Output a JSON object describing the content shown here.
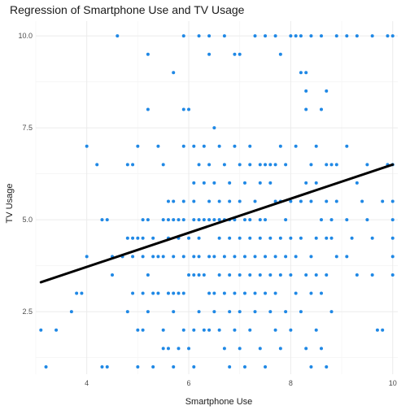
{
  "chart_data": {
    "type": "scatter",
    "title": "Regression of Smartphone Use and TV Usage",
    "xlabel": "Smartphone Use",
    "ylabel": "TV Usage",
    "xlim": [
      3.0,
      10.1
    ],
    "ylim": [
      0.8,
      10.4
    ],
    "x_ticks": [
      4,
      6,
      8,
      10
    ],
    "y_ticks": [
      2.5,
      5.0,
      7.5,
      10.0
    ],
    "x_tick_labels": [
      "4",
      "6",
      "8",
      "10"
    ],
    "y_tick_labels": [
      "2.5",
      "5.0",
      "7.5",
      "10.0"
    ],
    "grid": true,
    "point_color": "#1f88e5",
    "line_color": "#000000",
    "regression_line": {
      "x": [
        3.1,
        10.0
      ],
      "y": [
        3.3,
        6.5
      ]
    },
    "points": [
      [
        3.1,
        2.0
      ],
      [
        3.2,
        1.0
      ],
      [
        3.4,
        2.0
      ],
      [
        3.7,
        2.5
      ],
      [
        3.8,
        3.0
      ],
      [
        3.9,
        3.0
      ],
      [
        4.0,
        7.0
      ],
      [
        4.0,
        4.0
      ],
      [
        4.2,
        6.5
      ],
      [
        4.3,
        5.0
      ],
      [
        4.3,
        1.0
      ],
      [
        4.4,
        5.0
      ],
      [
        4.4,
        1.0
      ],
      [
        4.5,
        3.5
      ],
      [
        4.5,
        4.0
      ],
      [
        4.6,
        10.0
      ],
      [
        4.7,
        4.0
      ],
      [
        4.8,
        4.5
      ],
      [
        4.8,
        2.5
      ],
      [
        4.8,
        6.5
      ],
      [
        4.9,
        6.5
      ],
      [
        4.9,
        4.5
      ],
      [
        4.9,
        4.0
      ],
      [
        4.9,
        3.0
      ],
      [
        5.0,
        7.0
      ],
      [
        5.0,
        4.5
      ],
      [
        5.0,
        2.0
      ],
      [
        5.0,
        1.0
      ],
      [
        5.1,
        5.0
      ],
      [
        5.1,
        4.5
      ],
      [
        5.1,
        4.0
      ],
      [
        5.1,
        3.0
      ],
      [
        5.1,
        2.0
      ],
      [
        5.2,
        9.5
      ],
      [
        5.2,
        8.0
      ],
      [
        5.2,
        5.0
      ],
      [
        5.2,
        3.5
      ],
      [
        5.2,
        2.5
      ],
      [
        5.3,
        4.5
      ],
      [
        5.3,
        4.0
      ],
      [
        5.3,
        3.0
      ],
      [
        5.3,
        1.0
      ],
      [
        5.4,
        7.0
      ],
      [
        5.4,
        4.0
      ],
      [
        5.4,
        3.0
      ],
      [
        5.5,
        6.5
      ],
      [
        5.5,
        5.0
      ],
      [
        5.5,
        4.0
      ],
      [
        5.5,
        2.0
      ],
      [
        5.5,
        1.5
      ],
      [
        5.6,
        5.5
      ],
      [
        5.6,
        5.0
      ],
      [
        5.6,
        4.5
      ],
      [
        5.6,
        3.0
      ],
      [
        5.6,
        1.5
      ],
      [
        5.7,
        9.0
      ],
      [
        5.7,
        5.5
      ],
      [
        5.7,
        5.0
      ],
      [
        5.7,
        4.0
      ],
      [
        5.7,
        3.0
      ],
      [
        5.7,
        2.5
      ],
      [
        5.7,
        1.0
      ],
      [
        5.8,
        5.0
      ],
      [
        5.8,
        4.5
      ],
      [
        5.8,
        3.0
      ],
      [
        5.8,
        1.5
      ],
      [
        5.9,
        10.0
      ],
      [
        5.9,
        8.0
      ],
      [
        5.9,
        7.0
      ],
      [
        5.9,
        5.5
      ],
      [
        5.9,
        5.0
      ],
      [
        5.9,
        4.0
      ],
      [
        5.9,
        3.0
      ],
      [
        5.9,
        2.0
      ],
      [
        6.0,
        8.0
      ],
      [
        6.0,
        4.5
      ],
      [
        6.0,
        3.5
      ],
      [
        6.0,
        1.5
      ],
      [
        6.1,
        7.0
      ],
      [
        6.1,
        6.0
      ],
      [
        6.1,
        5.5
      ],
      [
        6.1,
        5.0
      ],
      [
        6.1,
        4.0
      ],
      [
        6.1,
        3.5
      ],
      [
        6.1,
        2.0
      ],
      [
        6.1,
        1.0
      ],
      [
        6.2,
        10.0
      ],
      [
        6.2,
        6.5
      ],
      [
        6.2,
        5.0
      ],
      [
        6.2,
        4.5
      ],
      [
        6.2,
        4.0
      ],
      [
        6.2,
        3.5
      ],
      [
        6.2,
        2.5
      ],
      [
        6.3,
        7.0
      ],
      [
        6.3,
        6.0
      ],
      [
        6.3,
        5.0
      ],
      [
        6.3,
        3.5
      ],
      [
        6.3,
        2.0
      ],
      [
        6.4,
        10.0
      ],
      [
        6.4,
        9.5
      ],
      [
        6.4,
        6.5
      ],
      [
        6.4,
        5.5
      ],
      [
        6.4,
        5.0
      ],
      [
        6.4,
        4.0
      ],
      [
        6.4,
        3.0
      ],
      [
        6.4,
        2.0
      ],
      [
        6.5,
        7.5
      ],
      [
        6.5,
        6.0
      ],
      [
        6.5,
        5.0
      ],
      [
        6.5,
        4.0
      ],
      [
        6.5,
        3.0
      ],
      [
        6.5,
        2.5
      ],
      [
        6.6,
        7.0
      ],
      [
        6.6,
        5.5
      ],
      [
        6.6,
        5.0
      ],
      [
        6.6,
        4.5
      ],
      [
        6.6,
        3.5
      ],
      [
        6.6,
        2.0
      ],
      [
        6.7,
        10.0
      ],
      [
        6.7,
        6.5
      ],
      [
        6.7,
        5.0
      ],
      [
        6.7,
        4.0
      ],
      [
        6.7,
        3.0
      ],
      [
        6.7,
        1.5
      ],
      [
        6.8,
        6.0
      ],
      [
        6.8,
        5.5
      ],
      [
        6.8,
        5.0
      ],
      [
        6.8,
        4.5
      ],
      [
        6.8,
        3.5
      ],
      [
        6.8,
        2.5
      ],
      [
        6.8,
        1.0
      ],
      [
        6.9,
        9.5
      ],
      [
        6.9,
        7.0
      ],
      [
        6.9,
        5.0
      ],
      [
        6.9,
        4.0
      ],
      [
        6.9,
        3.0
      ],
      [
        6.9,
        2.0
      ],
      [
        7.0,
        9.5
      ],
      [
        7.0,
        6.5
      ],
      [
        7.0,
        5.5
      ],
      [
        7.0,
        4.5
      ],
      [
        7.0,
        3.5
      ],
      [
        7.0,
        2.5
      ],
      [
        7.0,
        1.5
      ],
      [
        7.1,
        6.0
      ],
      [
        7.1,
        5.0
      ],
      [
        7.1,
        4.0
      ],
      [
        7.1,
        3.0
      ],
      [
        7.1,
        1.0
      ],
      [
        7.2,
        7.0
      ],
      [
        7.2,
        6.5
      ],
      [
        7.2,
        5.0
      ],
      [
        7.2,
        4.5
      ],
      [
        7.2,
        3.5
      ],
      [
        7.2,
        2.0
      ],
      [
        7.3,
        10.0
      ],
      [
        7.3,
        5.5
      ],
      [
        7.3,
        4.0
      ],
      [
        7.3,
        3.0
      ],
      [
        7.3,
        2.5
      ],
      [
        7.4,
        6.5
      ],
      [
        7.4,
        6.0
      ],
      [
        7.4,
        5.0
      ],
      [
        7.4,
        4.5
      ],
      [
        7.4,
        3.5
      ],
      [
        7.4,
        1.5
      ],
      [
        7.5,
        10.0
      ],
      [
        7.5,
        6.5
      ],
      [
        7.5,
        5.0
      ],
      [
        7.5,
        4.0
      ],
      [
        7.5,
        3.0
      ],
      [
        7.5,
        1.0
      ],
      [
        7.6,
        6.5
      ],
      [
        7.6,
        6.0
      ],
      [
        7.6,
        4.5
      ],
      [
        7.6,
        3.5
      ],
      [
        7.6,
        2.5
      ],
      [
        7.7,
        10.0
      ],
      [
        7.7,
        6.5
      ],
      [
        7.7,
        5.5
      ],
      [
        7.7,
        4.0
      ],
      [
        7.7,
        3.0
      ],
      [
        7.7,
        2.0
      ],
      [
        7.8,
        9.5
      ],
      [
        7.8,
        7.0
      ],
      [
        7.8,
        5.5
      ],
      [
        7.8,
        4.5
      ],
      [
        7.8,
        3.5
      ],
      [
        7.8,
        1.5
      ],
      [
        7.9,
        6.5
      ],
      [
        7.9,
        5.0
      ],
      [
        7.9,
        4.0
      ],
      [
        7.9,
        2.5
      ],
      [
        8.0,
        10.0
      ],
      [
        8.0,
        5.5
      ],
      [
        8.0,
        4.5
      ],
      [
        8.0,
        3.5
      ],
      [
        8.0,
        2.0
      ],
      [
        8.1,
        10.0
      ],
      [
        8.1,
        7.0
      ],
      [
        8.1,
        4.0
      ],
      [
        8.1,
        3.0
      ],
      [
        8.2,
        10.0
      ],
      [
        8.2,
        9.0
      ],
      [
        8.2,
        5.5
      ],
      [
        8.2,
        4.5
      ],
      [
        8.2,
        2.5
      ],
      [
        8.3,
        9.0
      ],
      [
        8.3,
        8.5
      ],
      [
        8.3,
        8.0
      ],
      [
        8.3,
        6.0
      ],
      [
        8.3,
        3.5
      ],
      [
        8.3,
        1.5
      ],
      [
        8.4,
        10.0
      ],
      [
        8.4,
        6.5
      ],
      [
        8.4,
        5.5
      ],
      [
        8.4,
        4.0
      ],
      [
        8.4,
        3.0
      ],
      [
        8.4,
        1.0
      ],
      [
        8.5,
        7.0
      ],
      [
        8.5,
        6.0
      ],
      [
        8.5,
        4.5
      ],
      [
        8.5,
        3.5
      ],
      [
        8.5,
        2.0
      ],
      [
        8.6,
        10.0
      ],
      [
        8.6,
        8.0
      ],
      [
        8.6,
        5.0
      ],
      [
        8.6,
        3.0
      ],
      [
        8.6,
        1.5
      ],
      [
        8.7,
        8.5
      ],
      [
        8.7,
        6.5
      ],
      [
        8.7,
        5.5
      ],
      [
        8.7,
        4.5
      ],
      [
        8.7,
        3.5
      ],
      [
        8.7,
        1.0
      ],
      [
        8.8,
        6.5
      ],
      [
        8.8,
        5.0
      ],
      [
        8.8,
        4.5
      ],
      [
        8.8,
        2.5
      ],
      [
        8.9,
        10.0
      ],
      [
        8.9,
        6.5
      ],
      [
        8.9,
        5.5
      ],
      [
        8.9,
        4.0
      ],
      [
        9.1,
        10.0
      ],
      [
        9.1,
        7.0
      ],
      [
        9.1,
        5.0
      ],
      [
        9.1,
        4.0
      ],
      [
        9.2,
        4.5
      ],
      [
        9.3,
        10.0
      ],
      [
        9.3,
        6.0
      ],
      [
        9.3,
        3.5
      ],
      [
        9.4,
        5.5
      ],
      [
        9.5,
        6.5
      ],
      [
        9.5,
        5.0
      ],
      [
        9.6,
        10.0
      ],
      [
        9.6,
        4.5
      ],
      [
        9.6,
        3.5
      ],
      [
        9.7,
        2.0
      ],
      [
        9.8,
        2.0
      ],
      [
        9.8,
        5.5
      ],
      [
        9.9,
        10.0
      ],
      [
        9.9,
        6.5
      ],
      [
        10.0,
        10.0
      ],
      [
        10.0,
        6.5
      ],
      [
        10.0,
        5.5
      ],
      [
        10.0,
        5.0
      ],
      [
        10.0,
        4.5
      ],
      [
        10.0,
        4.0
      ],
      [
        10.0,
        3.5
      ]
    ]
  }
}
